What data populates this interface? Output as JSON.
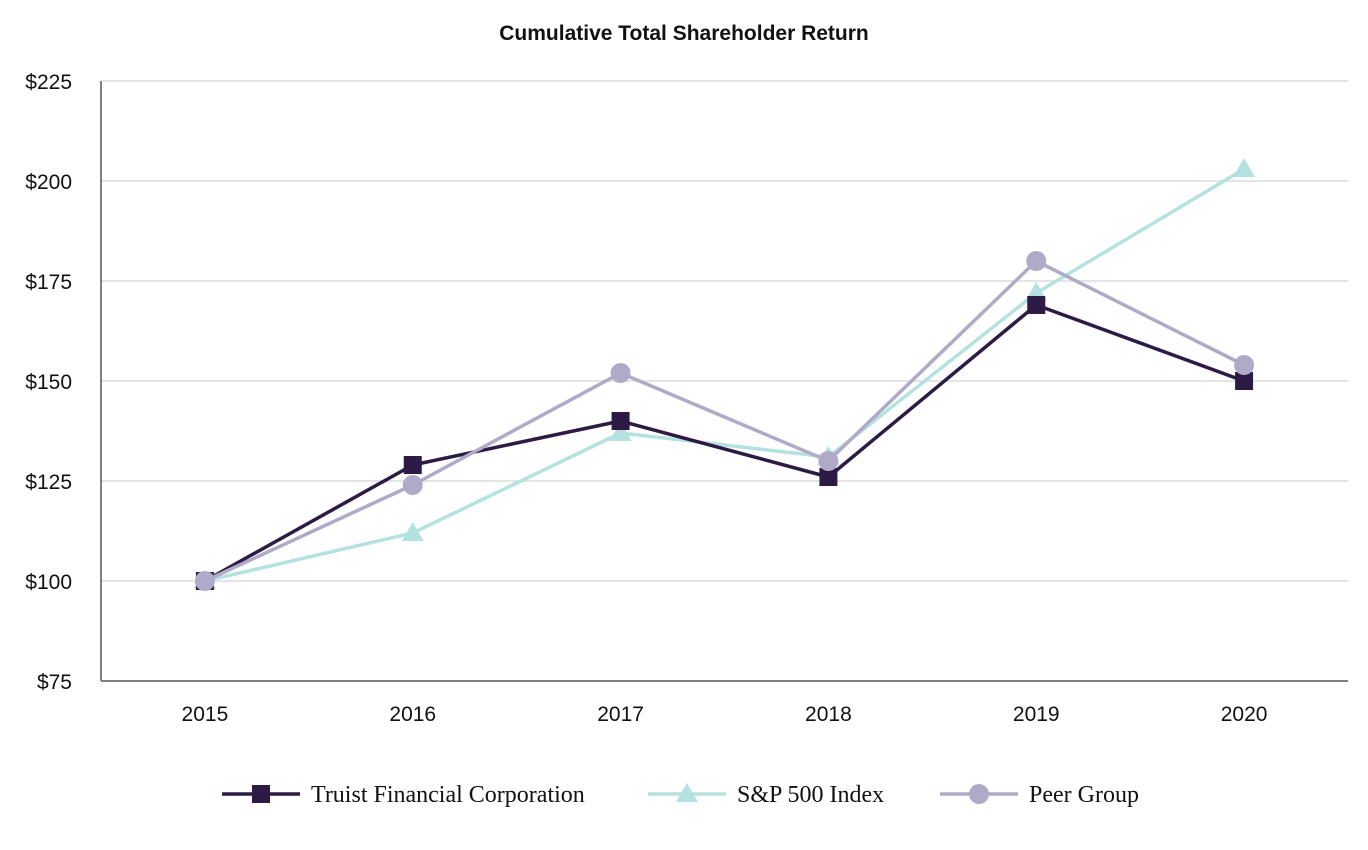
{
  "chart_data": {
    "type": "line",
    "title": "Cumulative Total Shareholder Return",
    "xlabel": "",
    "ylabel": "",
    "categories": [
      "2015",
      "2016",
      "2017",
      "2018",
      "2019",
      "2020"
    ],
    "ylim": [
      75,
      225
    ],
    "yticks": [
      75,
      100,
      125,
      150,
      175,
      200,
      225
    ],
    "ytick_labels": [
      "$75",
      "$100",
      "$125",
      "$150",
      "$175",
      "$200",
      "$225"
    ],
    "grid": true,
    "legend_position": "bottom-center",
    "series": [
      {
        "name": "Truist Financial Corporation",
        "marker": "square",
        "color": "#2d1b45",
        "values": [
          100,
          129,
          140,
          126,
          169,
          150
        ]
      },
      {
        "name": "S&P 500 Index",
        "marker": "triangle",
        "color": "#b3e2e0",
        "values": [
          100,
          112,
          137,
          131,
          172,
          203
        ]
      },
      {
        "name": "Peer Group",
        "marker": "circle",
        "color": "#b0aac9",
        "values": [
          100,
          124,
          152,
          130,
          180,
          154
        ]
      }
    ]
  }
}
